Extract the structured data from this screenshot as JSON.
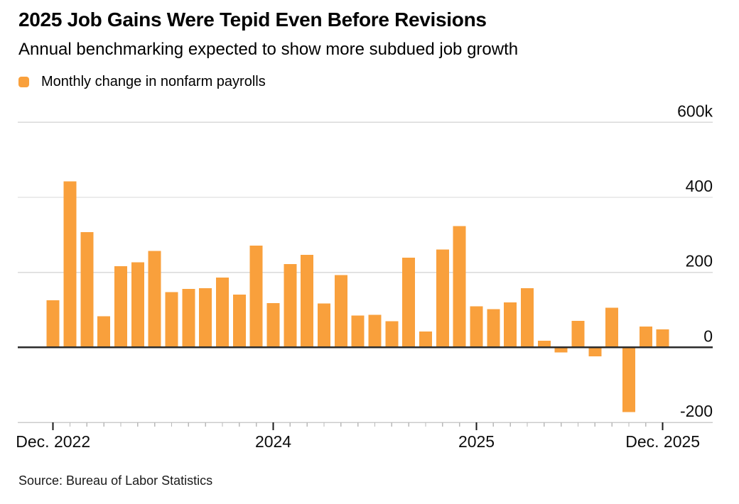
{
  "header": {
    "title": "2025 Job Gains Were Tepid Even Before Revisions",
    "subtitle": "Annual benchmarking expected to show more subdued job growth"
  },
  "legend": {
    "label": "Monthly change in nonfarm payrolls"
  },
  "footer": {
    "source": "Source: Bureau of Labor Statistics"
  },
  "colors": {
    "bar": "#F9A03C",
    "gridline": "#dadada",
    "baseline": "#cccccc",
    "zero_line": "#2b2b2b",
    "minor_tick": "#b9b9b9",
    "major_tick": "#1a1a1a",
    "axis_text": "#0d0d0d"
  },
  "chart_data": {
    "type": "bar",
    "title": "2025 Job Gains Were Tepid Even Before Revisions",
    "subtitle": "Annual benchmarking expected to show more subdued job growth",
    "series_name": "Monthly change in nonfarm payrolls",
    "unit": "thousands of jobs",
    "grid": true,
    "legend_position": "top-left",
    "ylim": [
      -200,
      600
    ],
    "x": [
      "Dec 2022",
      "Jan 2023",
      "Feb 2023",
      "Mar 2023",
      "Apr 2023",
      "May 2023",
      "Jun 2023",
      "Jul 2023",
      "Aug 2023",
      "Sep 2023",
      "Oct 2023",
      "Nov 2023",
      "Dec 2023",
      "Jan 2024",
      "Feb 2024",
      "Mar 2024",
      "Apr 2024",
      "May 2024",
      "Jun 2024",
      "Jul 2024",
      "Aug 2024",
      "Sep 2024",
      "Oct 2024",
      "Nov 2024",
      "Dec 2024",
      "Jan 2025",
      "Feb 2025",
      "Mar 2025",
      "Apr 2025",
      "May 2025",
      "Jun 2025",
      "Jul 2025",
      "Aug 2025",
      "Sep 2025",
      "Oct 2025",
      "Nov 2025",
      "Dec 2025"
    ],
    "values": [
      126,
      443,
      307,
      83,
      216,
      227,
      257,
      147,
      156,
      158,
      186,
      141,
      271,
      118,
      222,
      247,
      117,
      193,
      85,
      87,
      70,
      239,
      42,
      261,
      323,
      110,
      102,
      120,
      158,
      18,
      -13,
      71,
      -24,
      106,
      -172,
      56,
      48
    ],
    "y_axis": {
      "ticks": [
        {
          "label": "600k",
          "value": 600
        },
        {
          "label": "400",
          "value": 400
        },
        {
          "label": "200",
          "value": 200
        },
        {
          "label": "0",
          "value": 0
        },
        {
          "label": "-200",
          "value": -200
        }
      ]
    },
    "x_axis": {
      "major_ticks": [
        {
          "label": "Dec. 2022",
          "month_index": 0
        },
        {
          "label": "2024",
          "month_index": 13
        },
        {
          "label": "2025",
          "month_index": 25
        },
        {
          "label": "Dec. 2025",
          "month_index": 36
        }
      ]
    }
  }
}
